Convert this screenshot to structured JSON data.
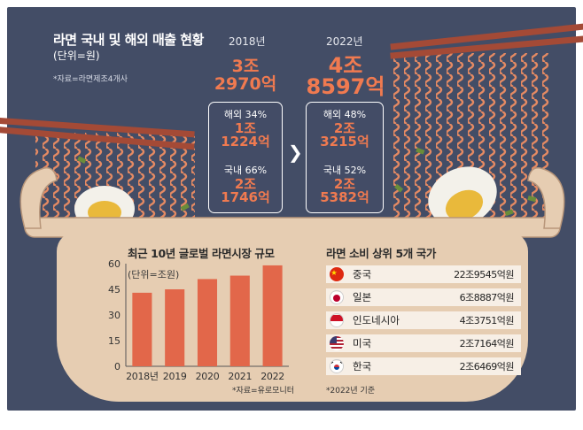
{
  "infographic": {
    "title": "라면 국내 및 해외 매출 현황",
    "unit": "(단위=원)",
    "source": "*자료=라면제조4개사",
    "years": [
      {
        "year": "2018년",
        "total_line1": "3조",
        "total_line2": "2970억",
        "overseas_label": "해외 34%",
        "overseas_line1": "1조",
        "overseas_line2": "1224억",
        "domestic_label": "국내 66%",
        "domestic_line1": "2조",
        "domestic_line2": "1746억"
      },
      {
        "year": "2022년",
        "total_line1": "4조",
        "total_line2": "8597억",
        "overseas_label": "해외 48%",
        "overseas_line1": "2조",
        "overseas_line2": "3215억",
        "domestic_label": "국내 52%",
        "domestic_line1": "2조",
        "domestic_line2": "5382억"
      }
    ],
    "arrow": "❯"
  },
  "chart_data": {
    "type": "bar",
    "title": "최근 10년 글로벌 라면시장 규모",
    "unit": "(단위=조원)",
    "categories": [
      "2018년",
      "2019",
      "2020",
      "2021",
      "2022"
    ],
    "values": [
      43,
      45,
      51,
      53,
      59
    ],
    "ylim": [
      0,
      60
    ],
    "yticks": [
      0,
      15,
      30,
      45,
      60
    ],
    "source": "*자료=유로모니터",
    "bar_color": "#e2674a"
  },
  "ranking": {
    "title": "라면 소비 상위 5개 국가",
    "items": [
      {
        "country": "중국",
        "value": "22조9545억원"
      },
      {
        "country": "일본",
        "value": "6조8887억원"
      },
      {
        "country": "인도네시아",
        "value": "4조3751억원"
      },
      {
        "country": "미국",
        "value": "2조7164억원"
      },
      {
        "country": "한국",
        "value": "2조6469억원"
      }
    ],
    "note": "*2022년 기준"
  },
  "colors": {
    "background": "#434d66",
    "accent": "#f07a50",
    "pot": "#e6cdb2",
    "noodle": "#e58a63",
    "chopsticks": "#a44a36"
  }
}
